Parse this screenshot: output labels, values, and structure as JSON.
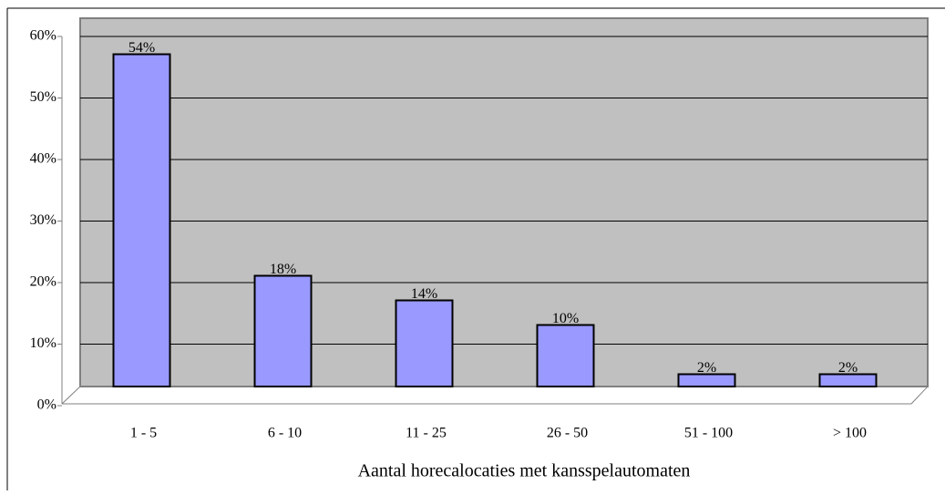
{
  "chart_data": {
    "type": "bar",
    "x_label": "Aantal horecalocaties met kansspelautomaten",
    "categories": [
      "1 - 5",
      "6 - 10",
      "11 - 25",
      "26 - 50",
      "51 - 100",
      "> 100"
    ],
    "values": [
      54,
      18,
      14,
      10,
      2,
      2
    ],
    "value_labels": [
      "54%",
      "18%",
      "14%",
      "10%",
      "2%",
      "2%"
    ],
    "color": "#9999ff",
    "ylim": [
      0,
      60
    ],
    "yticks": [
      {
        "value": 0,
        "label": "0%"
      },
      {
        "value": 10,
        "label": "10%"
      },
      {
        "value": 20,
        "label": "20%"
      },
      {
        "value": 30,
        "label": "30%"
      },
      {
        "value": 40,
        "label": "40%"
      },
      {
        "value": 50,
        "label": "50%"
      },
      {
        "value": 60,
        "label": "60%"
      }
    ],
    "grid": true
  }
}
